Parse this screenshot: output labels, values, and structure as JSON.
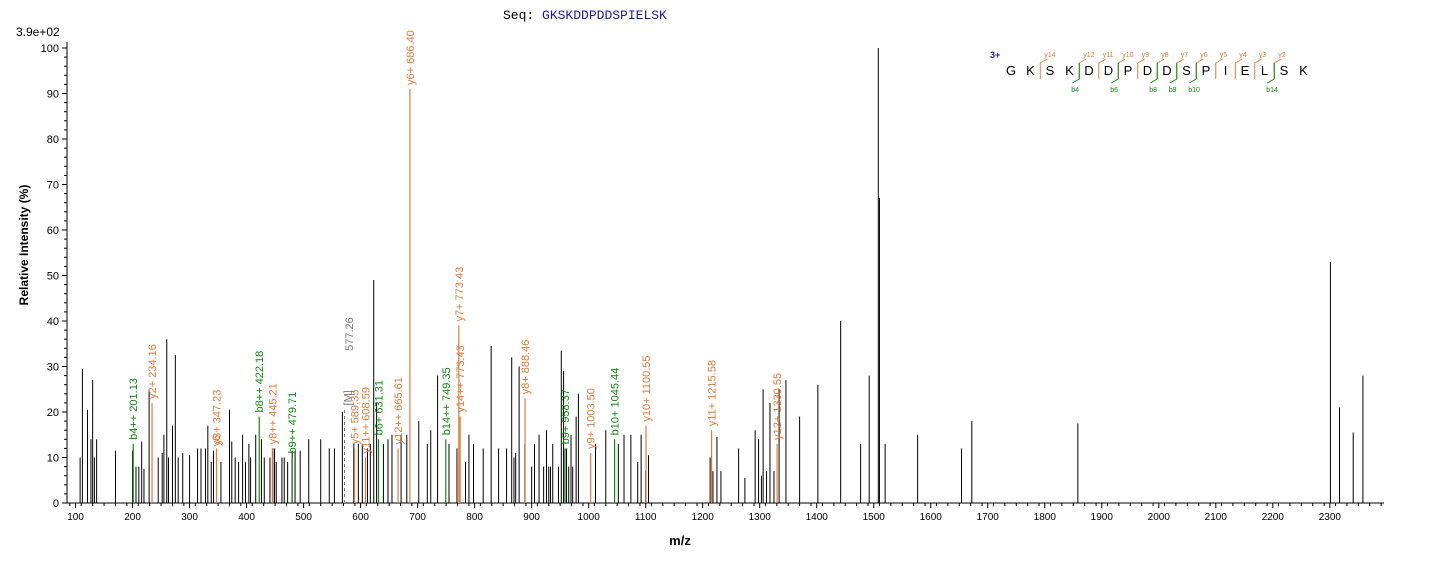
{
  "header": {
    "seq_label": "Seq:",
    "sequence": "GKSKDDPDDSPIELSK",
    "max_intensity": "3.9e+02"
  },
  "chart_data": {
    "type": "bar",
    "xlabel": "m/z",
    "ylabel": "Relative   Intensity (%)",
    "xlim": [
      85,
      2395
    ],
    "ylim": [
      0,
      100
    ],
    "xticks": [
      100,
      200,
      300,
      400,
      500,
      600,
      700,
      800,
      900,
      1000,
      1100,
      1200,
      1300,
      1400,
      1500,
      1600,
      1700,
      1800,
      1900,
      2000,
      2100,
      2200,
      2300
    ],
    "yticks": [
      0,
      10,
      20,
      30,
      40,
      50,
      60,
      70,
      80,
      90,
      100
    ],
    "colors": {
      "unannotated": "#000000",
      "y_ion": "#e07b39",
      "b_ion": "#118811",
      "precursor": "#777777",
      "charge": "#1a1aa0"
    },
    "peaks": [
      {
        "mz": 108,
        "i": 10
      },
      {
        "mz": 112,
        "i": 29.5
      },
      {
        "mz": 121,
        "i": 20.5
      },
      {
        "mz": 127,
        "i": 14
      },
      {
        "mz": 130,
        "i": 27
      },
      {
        "mz": 133,
        "i": 10
      },
      {
        "mz": 137,
        "i": 14
      },
      {
        "mz": 170,
        "i": 11.5
      },
      {
        "mz": 200,
        "i": 11.5
      },
      {
        "mz": 206,
        "i": 8
      },
      {
        "mz": 211,
        "i": 8
      },
      {
        "mz": 216,
        "i": 13.5
      },
      {
        "mz": 220,
        "i": 7.5
      },
      {
        "mz": 229,
        "i": 25
      },
      {
        "mz": 245,
        "i": 10
      },
      {
        "mz": 252,
        "i": 11
      },
      {
        "mz": 255,
        "i": 15
      },
      {
        "mz": 260,
        "i": 36
      },
      {
        "mz": 263,
        "i": 10
      },
      {
        "mz": 270,
        "i": 17
      },
      {
        "mz": 275,
        "i": 32.5
      },
      {
        "mz": 280,
        "i": 10
      },
      {
        "mz": 288,
        "i": 11
      },
      {
        "mz": 300,
        "i": 10.5
      },
      {
        "mz": 314,
        "i": 12
      },
      {
        "mz": 320,
        "i": 12
      },
      {
        "mz": 328,
        "i": 12
      },
      {
        "mz": 332,
        "i": 17
      },
      {
        "mz": 338,
        "i": 9
      },
      {
        "mz": 342,
        "i": 11.5
      },
      {
        "mz": 355,
        "i": 9
      },
      {
        "mz": 370,
        "i": 20.5
      },
      {
        "mz": 374,
        "i": 13.5
      },
      {
        "mz": 380,
        "i": 10
      },
      {
        "mz": 386,
        "i": 9
      },
      {
        "mz": 393,
        "i": 15
      },
      {
        "mz": 398,
        "i": 9
      },
      {
        "mz": 404,
        "i": 13
      },
      {
        "mz": 407,
        "i": 10
      },
      {
        "mz": 416,
        "i": 15
      },
      {
        "mz": 426,
        "i": 14
      },
      {
        "mz": 431,
        "i": 10
      },
      {
        "mz": 441,
        "i": 10
      },
      {
        "mz": 446,
        "i": 12
      },
      {
        "mz": 449,
        "i": 12
      },
      {
        "mz": 452,
        "i": 9
      },
      {
        "mz": 462,
        "i": 10
      },
      {
        "mz": 466,
        "i": 10
      },
      {
        "mz": 472,
        "i": 9
      },
      {
        "mz": 480,
        "i": 11.5
      },
      {
        "mz": 485,
        "i": 11.5
      },
      {
        "mz": 494,
        "i": 11.5
      },
      {
        "mz": 509,
        "i": 14
      },
      {
        "mz": 530,
        "i": 14
      },
      {
        "mz": 545,
        "i": 12
      },
      {
        "mz": 554,
        "i": 12
      },
      {
        "mz": 568,
        "i": 20
      },
      {
        "mz": 588,
        "i": 13
      },
      {
        "mz": 596,
        "i": 13
      },
      {
        "mz": 603,
        "i": 13
      },
      {
        "mz": 612,
        "i": 12
      },
      {
        "mz": 617,
        "i": 13
      },
      {
        "mz": 623,
        "i": 49
      },
      {
        "mz": 628,
        "i": 22
      },
      {
        "mz": 640,
        "i": 13
      },
      {
        "mz": 648,
        "i": 14
      },
      {
        "mz": 655,
        "i": 15
      },
      {
        "mz": 671,
        "i": 15
      },
      {
        "mz": 681,
        "i": 15
      },
      {
        "mz": 702,
        "i": 18
      },
      {
        "mz": 717,
        "i": 13
      },
      {
        "mz": 723,
        "i": 16
      },
      {
        "mz": 735,
        "i": 28
      },
      {
        "mz": 755,
        "i": 13
      },
      {
        "mz": 769,
        "i": 12
      },
      {
        "mz": 784,
        "i": 9
      },
      {
        "mz": 790,
        "i": 15
      },
      {
        "mz": 798,
        "i": 13
      },
      {
        "mz": 815,
        "i": 12
      },
      {
        "mz": 829,
        "i": 34.5
      },
      {
        "mz": 842,
        "i": 12
      },
      {
        "mz": 856,
        "i": 12
      },
      {
        "mz": 865,
        "i": 32
      },
      {
        "mz": 869,
        "i": 10
      },
      {
        "mz": 872,
        "i": 11
      },
      {
        "mz": 878,
        "i": 30
      },
      {
        "mz": 888,
        "i": 13
      },
      {
        "mz": 900,
        "i": 8
      },
      {
        "mz": 905,
        "i": 13
      },
      {
        "mz": 913,
        "i": 15
      },
      {
        "mz": 921,
        "i": 8
      },
      {
        "mz": 926,
        "i": 16
      },
      {
        "mz": 930,
        "i": 8
      },
      {
        "mz": 933,
        "i": 8
      },
      {
        "mz": 937,
        "i": 13
      },
      {
        "mz": 947,
        "i": 8
      },
      {
        "mz": 952,
        "i": 33.5
      },
      {
        "mz": 956,
        "i": 29
      },
      {
        "mz": 961,
        "i": 12
      },
      {
        "mz": 965,
        "i": 8
      },
      {
        "mz": 969,
        "i": 15
      },
      {
        "mz": 972,
        "i": 8
      },
      {
        "mz": 978,
        "i": 19
      },
      {
        "mz": 982,
        "i": 24
      },
      {
        "mz": 1012,
        "i": 13
      },
      {
        "mz": 1030,
        "i": 16
      },
      {
        "mz": 1052,
        "i": 13
      },
      {
        "mz": 1062,
        "i": 15
      },
      {
        "mz": 1074,
        "i": 15
      },
      {
        "mz": 1086,
        "i": 9
      },
      {
        "mz": 1092,
        "i": 15
      },
      {
        "mz": 1100,
        "i": 7
      },
      {
        "mz": 1105,
        "i": 10.5
      },
      {
        "mz": 1213,
        "i": 10
      },
      {
        "mz": 1218,
        "i": 7
      },
      {
        "mz": 1225,
        "i": 14.5
      },
      {
        "mz": 1232,
        "i": 7
      },
      {
        "mz": 1263,
        "i": 12
      },
      {
        "mz": 1274,
        "i": 5.5
      },
      {
        "mz": 1292,
        "i": 16
      },
      {
        "mz": 1298,
        "i": 14
      },
      {
        "mz": 1303,
        "i": 6
      },
      {
        "mz": 1306,
        "i": 25
      },
      {
        "mz": 1312,
        "i": 7
      },
      {
        "mz": 1318,
        "i": 22
      },
      {
        "mz": 1325,
        "i": 7
      },
      {
        "mz": 1334,
        "i": 25
      },
      {
        "mz": 1346,
        "i": 27
      },
      {
        "mz": 1370,
        "i": 19
      },
      {
        "mz": 1402,
        "i": 26
      },
      {
        "mz": 1442,
        "i": 40
      },
      {
        "mz": 1477,
        "i": 13
      },
      {
        "mz": 1492,
        "i": 28
      },
      {
        "mz": 1508,
        "i": 100
      },
      {
        "mz": 1510,
        "i": 67
      },
      {
        "mz": 1520,
        "i": 13
      },
      {
        "mz": 1577,
        "i": 15
      },
      {
        "mz": 1654,
        "i": 12
      },
      {
        "mz": 1672,
        "i": 18
      },
      {
        "mz": 1858,
        "i": 17.5
      },
      {
        "mz": 2301,
        "i": 53
      },
      {
        "mz": 2317,
        "i": 21
      },
      {
        "mz": 2341,
        "i": 15.5
      },
      {
        "mz": 2358,
        "i": 28
      }
    ],
    "annotated_peaks": [
      {
        "label": "b4++ 201.13",
        "mz": 201.13,
        "i": 13,
        "type": "b"
      },
      {
        "label": "y2+ 234.16",
        "mz": 234.16,
        "i": 22,
        "type": "y"
      },
      {
        "label": "y3+ 347.23",
        "mz": 347.23,
        "i": 12,
        "type": "y"
      },
      {
        "label": "b8++ 422.18",
        "mz": 422.18,
        "i": 19,
        "type": "b"
      },
      {
        "label": "y8++ 445.21",
        "mz": 445.21,
        "i": 12,
        "type": "y"
      },
      {
        "label": "b9++ 479.71",
        "mz": 479.71,
        "i": 10,
        "type": "b"
      },
      {
        "label": "y5+ 589.35",
        "mz": 589.35,
        "i": 12,
        "type": "y"
      },
      {
        "label": "y11++ 608.59",
        "mz": 608.59,
        "i": 10,
        "type": "y"
      },
      {
        "label": "b6+ 631.31",
        "mz": 631.31,
        "i": 14,
        "type": "b"
      },
      {
        "label": "y12++ 665.61",
        "mz": 665.61,
        "i": 12,
        "type": "y"
      },
      {
        "label": "y6+ 686.40",
        "mz": 686.4,
        "i": 91,
        "type": "y"
      },
      {
        "label": "b14++ 749.35",
        "mz": 749.35,
        "i": 14,
        "type": "b"
      },
      {
        "label": "y7+ 773.43",
        "mz": 772.3,
        "i": 39,
        "type": "y"
      },
      {
        "label": "y14++ 773.43",
        "mz": 774.5,
        "i": 19,
        "type": "y"
      },
      {
        "label": "y8+ 888.46",
        "mz": 888.46,
        "i": 23,
        "type": "y"
      },
      {
        "label": "b9+ 958.37",
        "mz": 958.37,
        "i": 12,
        "type": "b"
      },
      {
        "label": "y9+ 1003.50",
        "mz": 1003.5,
        "i": 11,
        "type": "y"
      },
      {
        "label": "b10+ 1045.44",
        "mz": 1045.44,
        "i": 14,
        "type": "b"
      },
      {
        "label": "y10+ 1100.55",
        "mz": 1100.55,
        "i": 17,
        "type": "y"
      },
      {
        "label": "y11+ 1215.58",
        "mz": 1215.58,
        "i": 16,
        "type": "y"
      },
      {
        "label": "y12+ 1330.55",
        "mz": 1330.55,
        "i": 13,
        "type": "y"
      }
    ],
    "other_labels": [
      {
        "label": "y6",
        "mz": 346,
        "i": 12,
        "type": "y"
      },
      {
        "label": "[M]",
        "mz": 577,
        "i": 21,
        "type": "precursor"
      },
      {
        "label": "577.26",
        "mz": 580,
        "i": 33,
        "type": "precursor"
      }
    ],
    "sequence_map": {
      "charge": "3+",
      "residues": [
        "G",
        "K",
        "S",
        "K",
        "D",
        "D",
        "P",
        "D",
        "D",
        "S",
        "P",
        "I",
        "E",
        "L",
        "S",
        "K"
      ],
      "y_ions": [
        {
          "label": "y14",
          "after": 2
        },
        {
          "label": "y12",
          "after": 4
        },
        {
          "label": "y11",
          "after": 5
        },
        {
          "label": "y10",
          "after": 6
        },
        {
          "label": "y9",
          "after": 7
        },
        {
          "label": "y8",
          "after": 8
        },
        {
          "label": "y7",
          "after": 9
        },
        {
          "label": "y6",
          "after": 10
        },
        {
          "label": "y5",
          "after": 11
        },
        {
          "label": "y4",
          "after": 12
        },
        {
          "label": "y3",
          "after": 13
        },
        {
          "label": "y2",
          "after": 14
        }
      ],
      "b_ions": [
        {
          "label": "b4",
          "after": 4
        },
        {
          "label": "b6",
          "after": 6
        },
        {
          "label": "b8",
          "after": 8
        },
        {
          "label": "b9",
          "after": 9
        },
        {
          "label": "b10",
          "after": 10
        },
        {
          "label": "b14",
          "after": 14
        }
      ]
    }
  }
}
